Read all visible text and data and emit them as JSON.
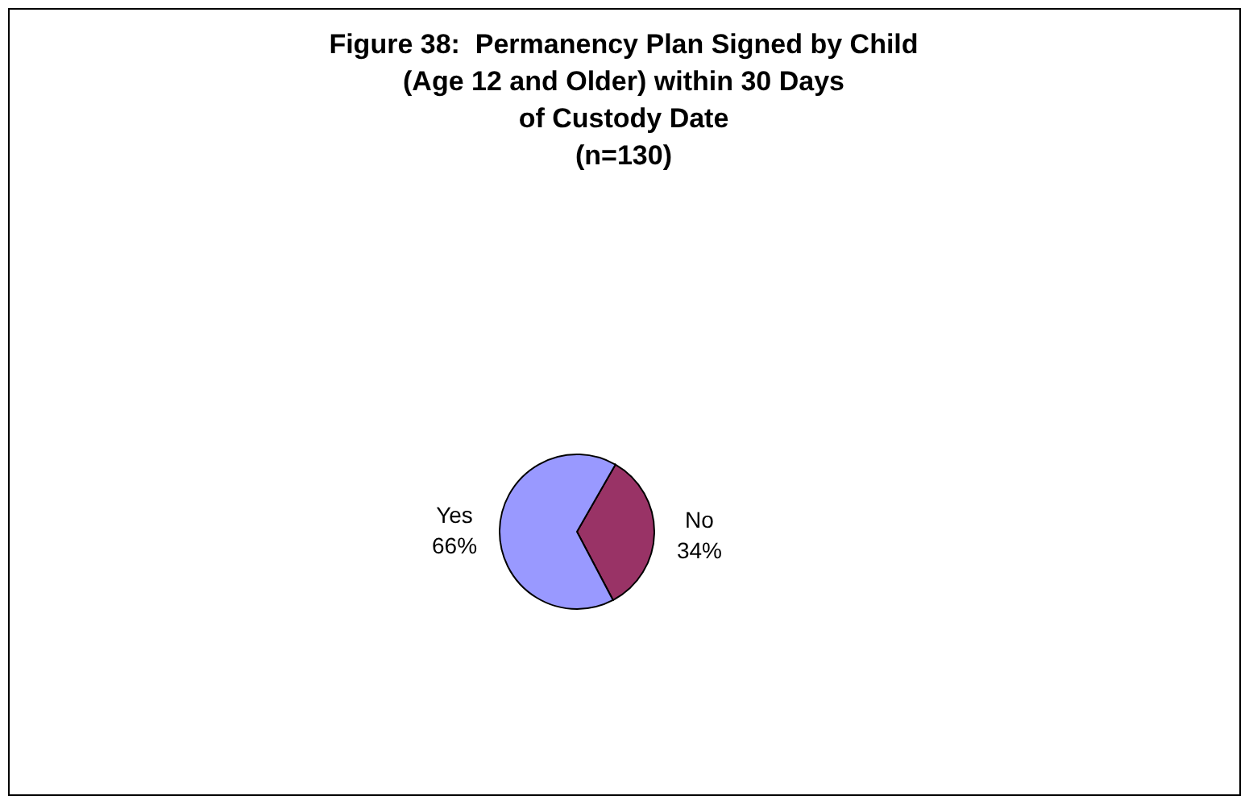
{
  "chart_data": {
    "type": "pie",
    "title": "Figure 38:  Permanency Plan Signed by Child\n(Age 12 and Older) within 30 Days\nof Custody Date\n(n=130)",
    "categories": [
      "No",
      "Yes"
    ],
    "values": [
      34,
      66
    ],
    "colors": [
      "#993366",
      "#9999ff"
    ],
    "value_labels": [
      "34%",
      "66%"
    ],
    "legend": false
  }
}
